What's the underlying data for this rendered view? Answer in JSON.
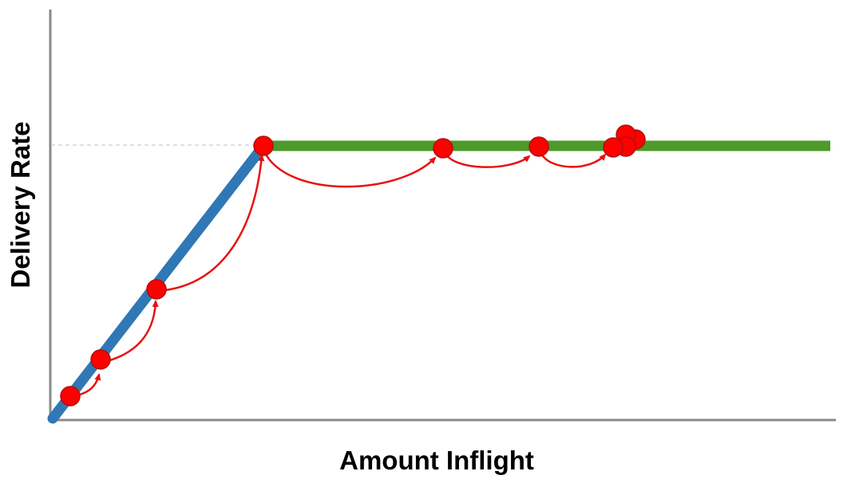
{
  "diagram": {
    "x_axis_label": "Amount Inflight",
    "y_axis_label": "Delivery Rate",
    "colors": {
      "axis": "#8a8a8a",
      "ramp": "#2f78b5",
      "plateau": "#4c9a2a",
      "point_fill": "#ff0000",
      "point_stroke": "#b01010",
      "arrow": "#e81010",
      "reference_line": "#cfcfcf"
    }
  }
}
